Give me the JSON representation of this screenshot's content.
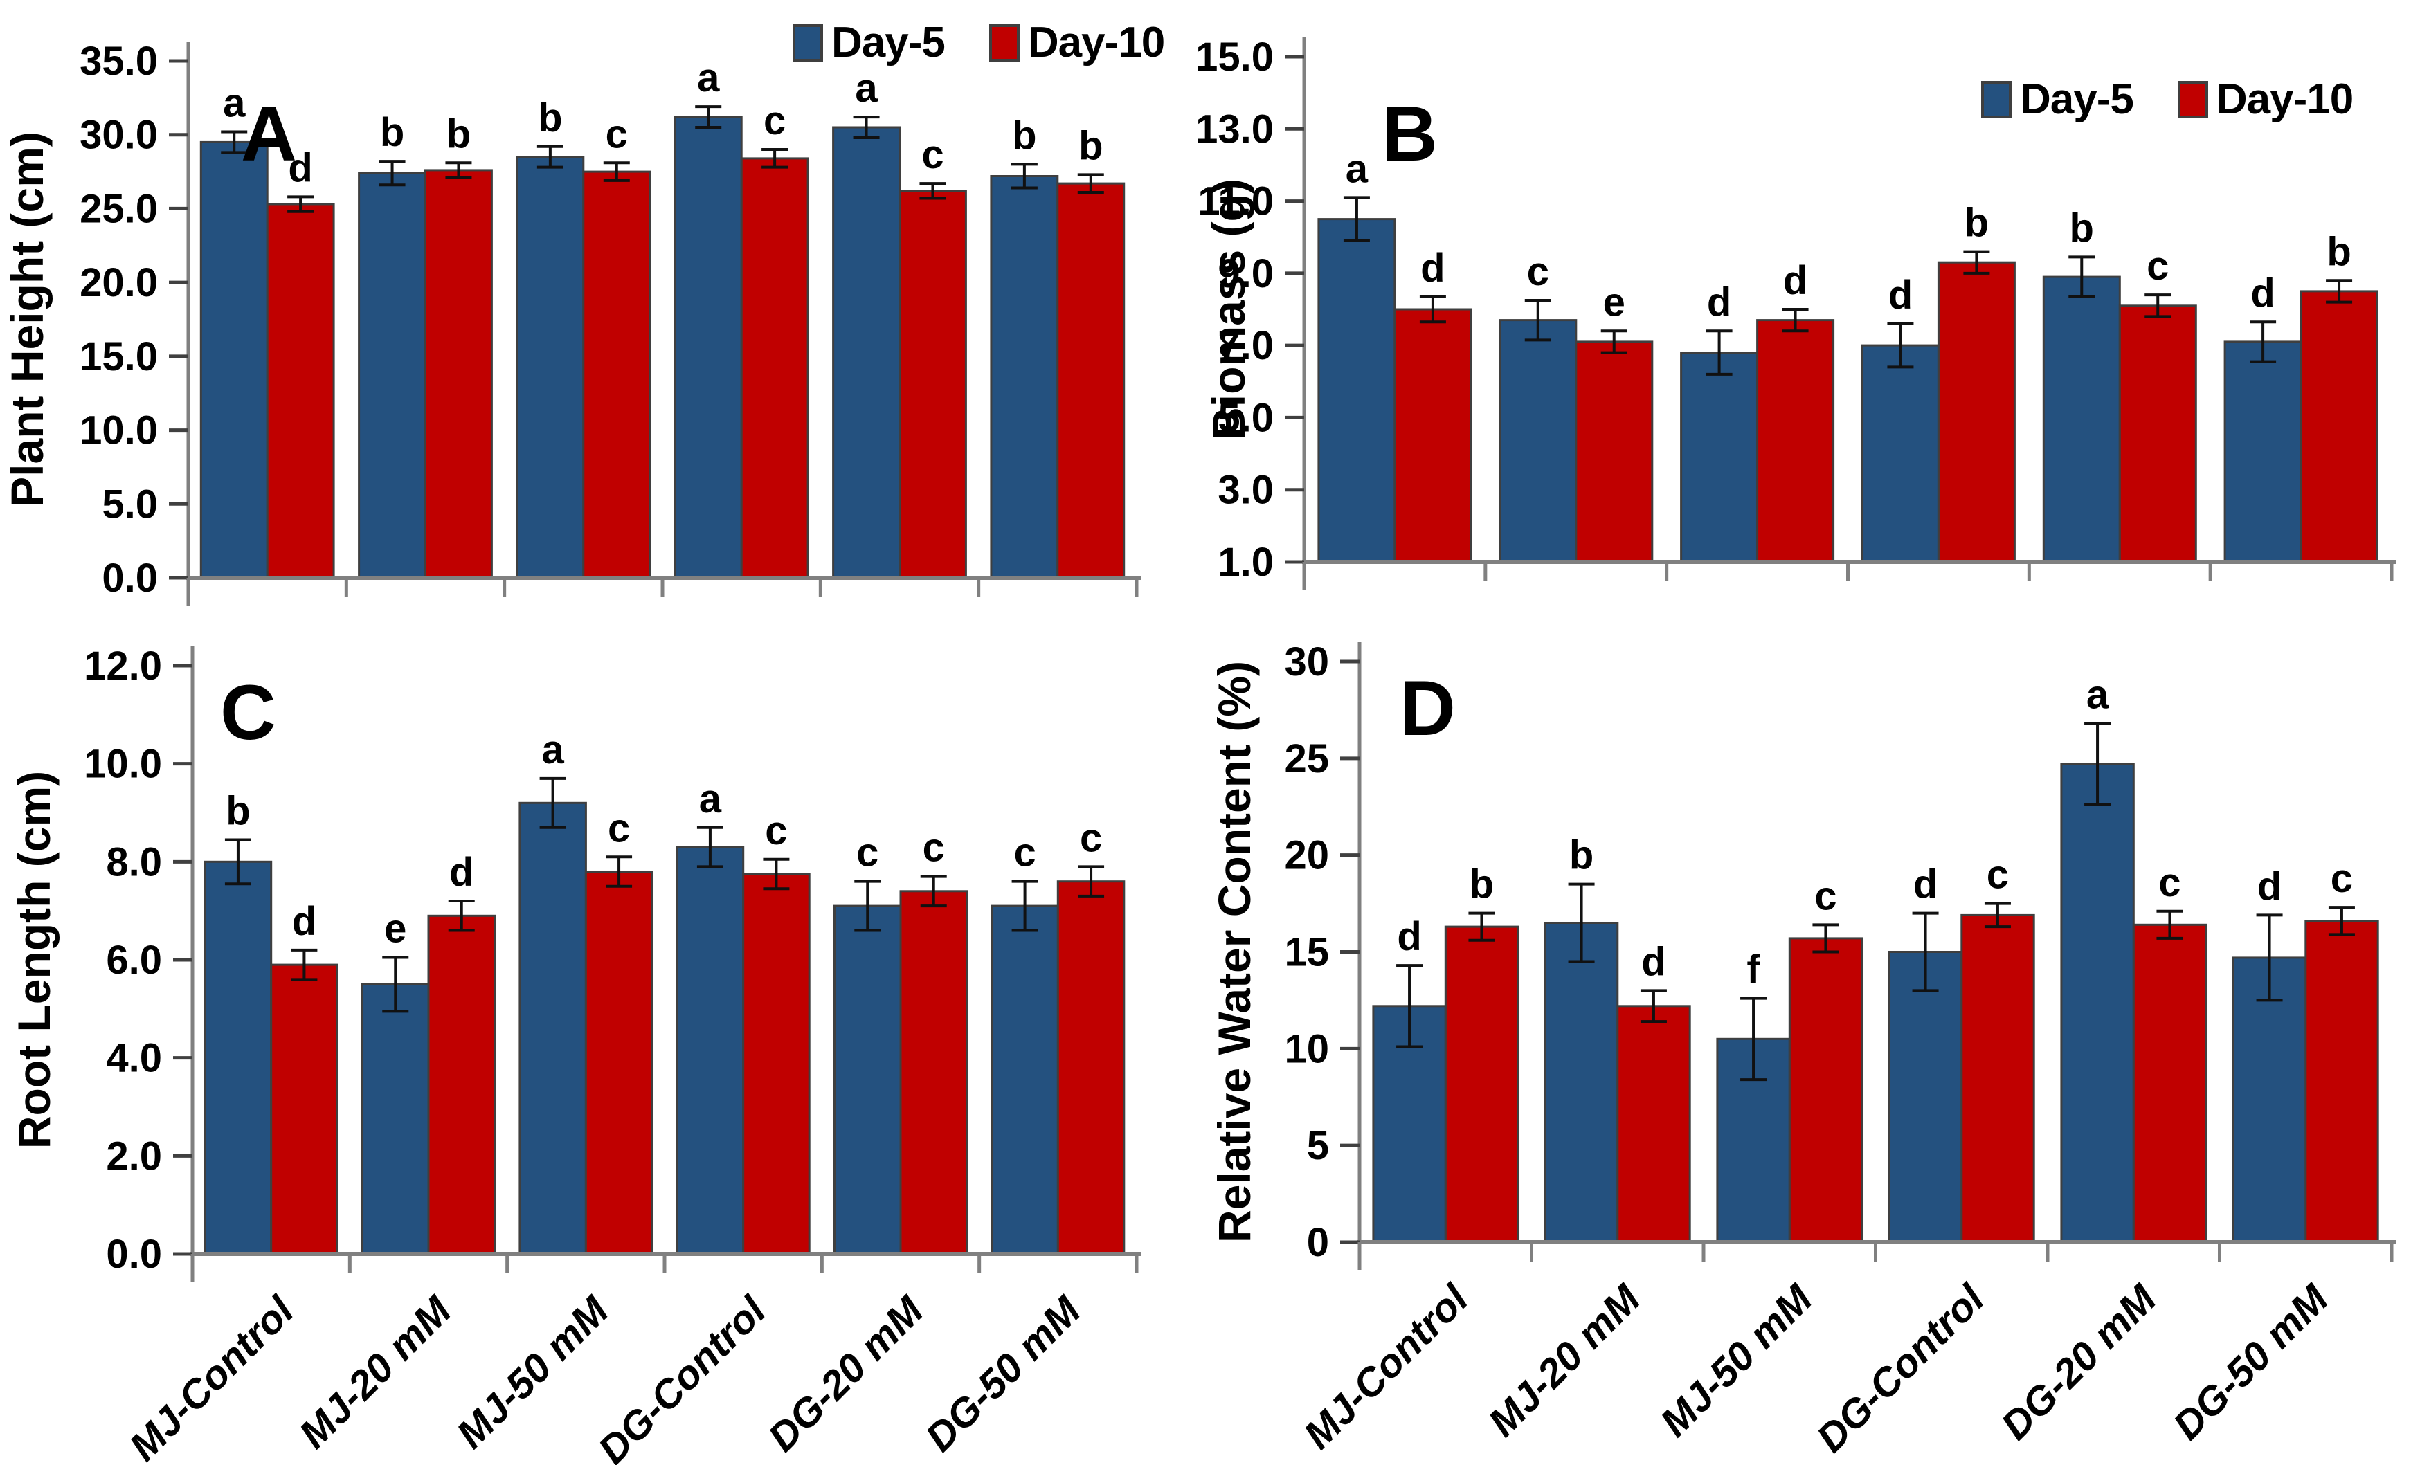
{
  "legend": {
    "day5": "Day-5",
    "day10": "Day-10"
  },
  "colors": {
    "day5": "#24517F",
    "day10": "#C00000",
    "axis": "#808080",
    "bar_outline": "#3f3f3f",
    "error_bar": "#111111",
    "text": "#000000"
  },
  "categories": [
    "MJ-Control",
    "MJ-20 mM",
    "MJ-50 mM",
    "DG-Control",
    "DG-20 mM",
    "DG-50 mM"
  ],
  "chart_data": [
    {
      "type": "bar",
      "panel": "A",
      "ylabel": "Plant Height (cm)",
      "ylim": [
        0,
        35
      ],
      "ystep": 5,
      "yticks": [
        "0.0",
        "5.0",
        "10.0",
        "15.0",
        "20.0",
        "25.0",
        "30.0",
        "35.0"
      ],
      "grid": false,
      "legend_position": "outside-top",
      "show_x_labels": false,
      "categories": [
        "MJ-Control",
        "MJ-20 mM",
        "MJ-50 mM",
        "DG-Control",
        "DG-20 mM",
        "DG-50 mM"
      ],
      "series": [
        {
          "name": "Day-5",
          "values": [
            29.5,
            27.4,
            28.5,
            31.2,
            30.5,
            27.2
          ],
          "errors": [
            0.7,
            0.8,
            0.7,
            0.7,
            0.7,
            0.8
          ],
          "letters": [
            "a",
            "b",
            "b",
            "a",
            "a",
            "b"
          ]
        },
        {
          "name": "Day-10",
          "values": [
            25.3,
            27.6,
            27.5,
            28.4,
            26.2,
            26.7
          ],
          "errors": [
            0.5,
            0.5,
            0.6,
            0.6,
            0.5,
            0.6
          ],
          "letters": [
            "d",
            "b",
            "c",
            "c",
            "c",
            "b"
          ]
        }
      ]
    },
    {
      "type": "bar",
      "panel": "B",
      "ylabel": "Biomass (g)",
      "ylim": [
        1,
        15
      ],
      "ystep": 2,
      "yticks": [
        "1.0",
        "3.0",
        "5.0",
        "7.0",
        "9.0",
        "11.0",
        "13.0",
        "15.0"
      ],
      "grid": false,
      "legend_position": "inside-top-right",
      "show_x_labels": false,
      "categories": [
        "MJ-Control",
        "MJ-20 mM",
        "MJ-50 mM",
        "DG-Control",
        "DG-20 mM",
        "DG-50 mM"
      ],
      "series": [
        {
          "name": "Day-5",
          "values": [
            10.5,
            7.7,
            6.8,
            7.0,
            8.9,
            7.1
          ],
          "errors": [
            0.6,
            0.55,
            0.6,
            0.6,
            0.55,
            0.55
          ],
          "letters": [
            "a",
            "c",
            "d",
            "d",
            "b",
            "d"
          ]
        },
        {
          "name": "Day-10",
          "values": [
            8.0,
            7.1,
            7.7,
            9.3,
            8.1,
            8.5
          ],
          "errors": [
            0.35,
            0.3,
            0.3,
            0.3,
            0.3,
            0.3
          ],
          "letters": [
            "d",
            "e",
            "d",
            "b",
            "c",
            "b"
          ]
        }
      ]
    },
    {
      "type": "bar",
      "panel": "C",
      "ylabel": "Root Length (cm)",
      "ylim": [
        0,
        12
      ],
      "ystep": 2,
      "yticks": [
        "0.0",
        "2.0",
        "4.0",
        "6.0",
        "8.0",
        "10.0",
        "12.0"
      ],
      "grid": false,
      "legend_position": "none",
      "show_x_labels": true,
      "categories": [
        "MJ-Control",
        "MJ-20 mM",
        "MJ-50 mM",
        "DG-Control",
        "DG-20 mM",
        "DG-50 mM"
      ],
      "series": [
        {
          "name": "Day-5",
          "values": [
            8.0,
            5.5,
            9.2,
            8.3,
            7.1,
            7.1
          ],
          "errors": [
            0.45,
            0.55,
            0.5,
            0.4,
            0.5,
            0.5
          ],
          "letters": [
            "b",
            "e",
            "a",
            "a",
            "c",
            "c"
          ]
        },
        {
          "name": "Day-10",
          "values": [
            5.9,
            6.9,
            7.8,
            7.75,
            7.4,
            7.6
          ],
          "errors": [
            0.3,
            0.3,
            0.3,
            0.3,
            0.3,
            0.3
          ],
          "letters": [
            "d",
            "d",
            "c",
            "c",
            "c",
            "c"
          ]
        }
      ]
    },
    {
      "type": "bar",
      "panel": "D",
      "ylabel": "Relative Water Content (%)",
      "ylim": [
        0,
        30
      ],
      "ystep": 5,
      "yticks": [
        "0",
        "5",
        "10",
        "15",
        "20",
        "25",
        "30"
      ],
      "grid": false,
      "legend_position": "none",
      "show_x_labels": true,
      "categories": [
        "MJ-Control",
        "MJ-20 mM",
        "MJ-50 mM",
        "DG-Control",
        "DG-20 mM",
        "DG-50 mM"
      ],
      "series": [
        {
          "name": "Day-5",
          "values": [
            12.2,
            16.5,
            10.5,
            15.0,
            24.7,
            14.7
          ],
          "errors": [
            2.1,
            2.0,
            2.1,
            2.0,
            2.1,
            2.2
          ],
          "letters": [
            "d",
            "b",
            "f",
            "d",
            "a",
            "d"
          ]
        },
        {
          "name": "Day-10",
          "values": [
            16.3,
            12.2,
            15.7,
            16.9,
            16.4,
            16.6
          ],
          "errors": [
            0.7,
            0.8,
            0.7,
            0.6,
            0.7,
            0.7
          ],
          "letters": [
            "b",
            "d",
            "c",
            "c",
            "c",
            "c"
          ]
        }
      ]
    }
  ]
}
